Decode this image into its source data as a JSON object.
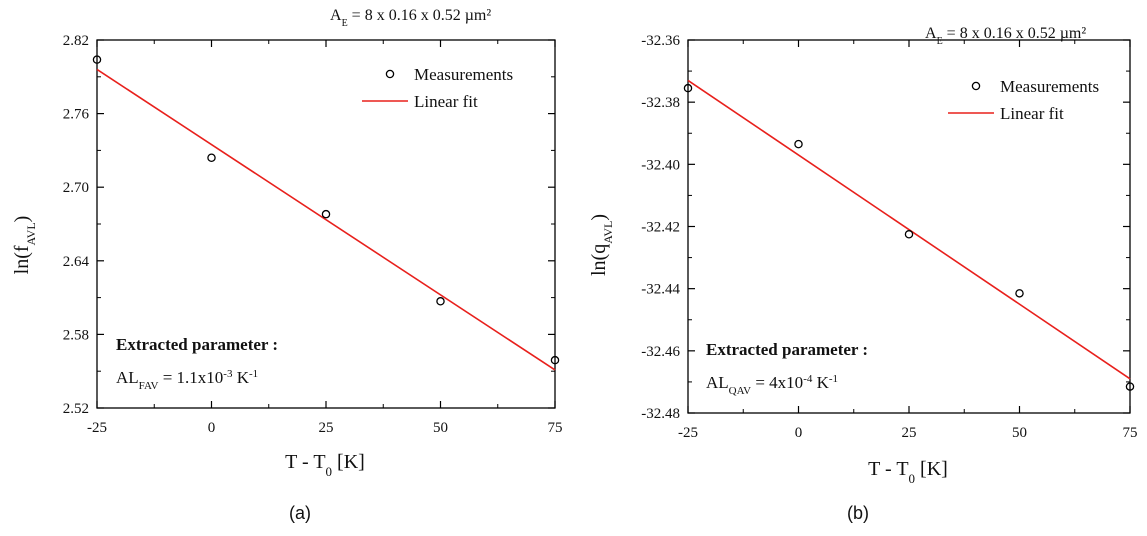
{
  "chart_data": [
    {
      "type": "scatter",
      "caption": "(a)",
      "area_text": {
        "prefix": "A",
        "sub": "E",
        "rest": "= 8 x 0.16 x 0.52 µm²"
      },
      "xlabel": {
        "main": "T - T",
        "sub": "0",
        "rest": " [K]"
      },
      "ylabel": {
        "main": "ln(f",
        "sub": "AVL",
        "rest": ")"
      },
      "xlim": [
        -25,
        75
      ],
      "ylim": [
        2.52,
        2.82
      ],
      "xticks": [
        "-25",
        "0",
        "25",
        "50",
        "75"
      ],
      "yticks": [
        "2.52",
        "2.58",
        "2.64",
        "2.70",
        "2.76",
        "2.82"
      ],
      "series": [
        {
          "name": "Measurements",
          "marker": "open-circle",
          "color": "#000000",
          "x": [
            -25,
            0,
            25,
            50,
            75
          ],
          "y": [
            2.804,
            2.724,
            2.678,
            2.607,
            2.559
          ]
        },
        {
          "name": "Linear fit",
          "marker": "line",
          "color": "#e8201c",
          "x": [
            -25,
            75
          ],
          "y": [
            2.796,
            2.551
          ]
        }
      ],
      "legend_position": "top-right",
      "annotation": {
        "title": "Extracted parameter :",
        "param": {
          "main": "AL",
          "sub": "FAV",
          "mid": " = 1.1x10",
          "sup": "-3",
          "unit": " K",
          "unit_sup": "-1"
        }
      }
    },
    {
      "type": "scatter",
      "caption": "(b)",
      "area_text": {
        "prefix": "A",
        "sub": "E",
        "rest": "= 8 x 0.16 x 0.52 µm²"
      },
      "xlabel": {
        "main": "T - T",
        "sub": "0",
        "rest": " [K]"
      },
      "ylabel": {
        "main": "ln(q",
        "sub": "AVL",
        "rest": ")"
      },
      "xlim": [
        -25,
        75
      ],
      "ylim": [
        -32.48,
        -32.36
      ],
      "xticks": [
        "-25",
        "0",
        "25",
        "50",
        "75"
      ],
      "yticks": [
        "-32.48",
        "-32.46",
        "-32.44",
        "-32.42",
        "-32.40",
        "-32.38",
        "-32.36"
      ],
      "series": [
        {
          "name": "Measurements",
          "marker": "open-circle",
          "color": "#000000",
          "x": [
            -25,
            0,
            25,
            50,
            75
          ],
          "y": [
            -32.3755,
            -32.3935,
            -32.4225,
            -32.4415,
            -32.4715
          ]
        },
        {
          "name": "Linear fit",
          "marker": "line",
          "color": "#e8201c",
          "x": [
            -25,
            75
          ],
          "y": [
            -32.373,
            -32.469
          ]
        }
      ],
      "legend_position": "top-right",
      "annotation": {
        "title": "Extracted parameter :",
        "param": {
          "main": "AL",
          "sub": "QAV",
          "mid": " = 4x10",
          "sup": "-4",
          "unit": " K",
          "unit_sup": "-1"
        }
      }
    }
  ]
}
